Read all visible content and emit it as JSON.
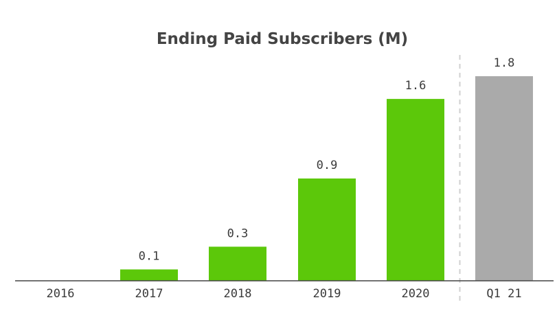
{
  "chart_data": {
    "type": "bar",
    "title": "Ending Paid Subscribers (M)",
    "xlabel": "",
    "ylabel": "",
    "categories": [
      "2016",
      "2017",
      "2018",
      "2019",
      "2020",
      "Q1 21"
    ],
    "values": [
      0,
      0.1,
      0.3,
      0.9,
      1.6,
      1.8
    ],
    "data_labels": [
      "",
      "0.1",
      "0.3",
      "0.9",
      "1.6",
      "1.8"
    ],
    "ylim": [
      0,
      1.8
    ],
    "grid": false,
    "legend": "none",
    "colors": {
      "annual": "#5cc80a",
      "quarter": "#aaaaaa",
      "divider": "#d0d0d0",
      "baseline": "#444444"
    },
    "divider_before_index": 5
  }
}
